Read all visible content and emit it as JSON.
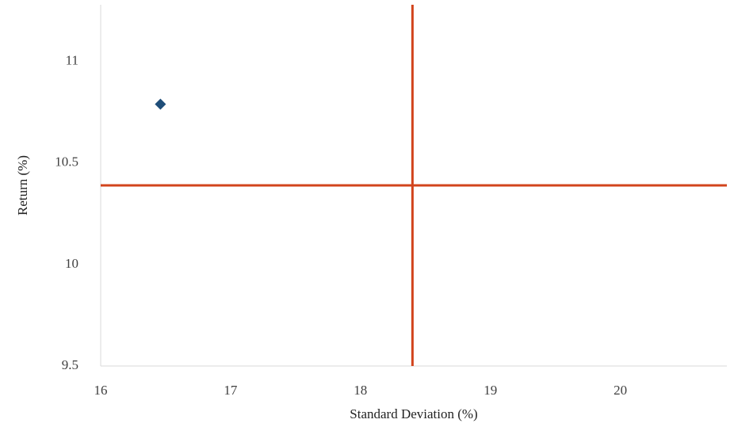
{
  "chart_data": {
    "type": "scatter",
    "x_label": "Standard Deviation (%)",
    "y_label": "Return (%)",
    "series": [
      {
        "color": "#1f4e79",
        "x": [
          16.46
        ],
        "values": [
          10.79
        ]
      }
    ],
    "x_reference": {
      "value": 18.4,
      "color": "#d2441c"
    },
    "y_reference": {
      "value": 10.39,
      "color": "#d2441c"
    },
    "xlim": [
      16,
      20.82
    ],
    "ylim": [
      9.5,
      11.28
    ],
    "xticks": [
      16,
      17,
      18,
      19,
      20
    ],
    "yticks": [
      9.5,
      10,
      10.5,
      11
    ],
    "grid": false
  }
}
